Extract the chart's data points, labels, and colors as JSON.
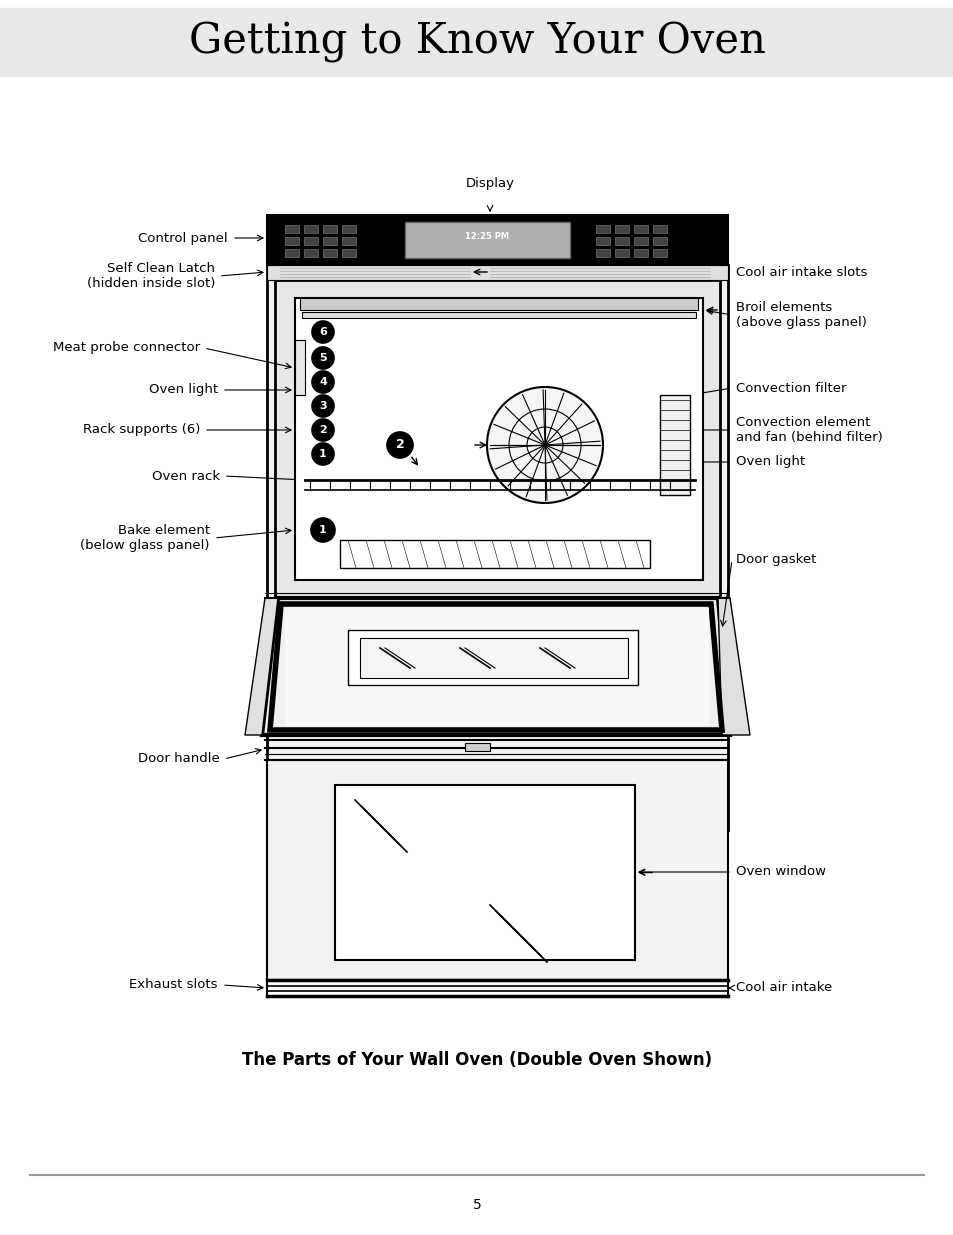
{
  "title": "Getting to Know Your Oven",
  "title_bg": "#e8e8e8",
  "subtitle": "The Parts of Your Wall Oven (Double Oven Shown)",
  "page_number": "5",
  "bg_color": "#ffffff"
}
